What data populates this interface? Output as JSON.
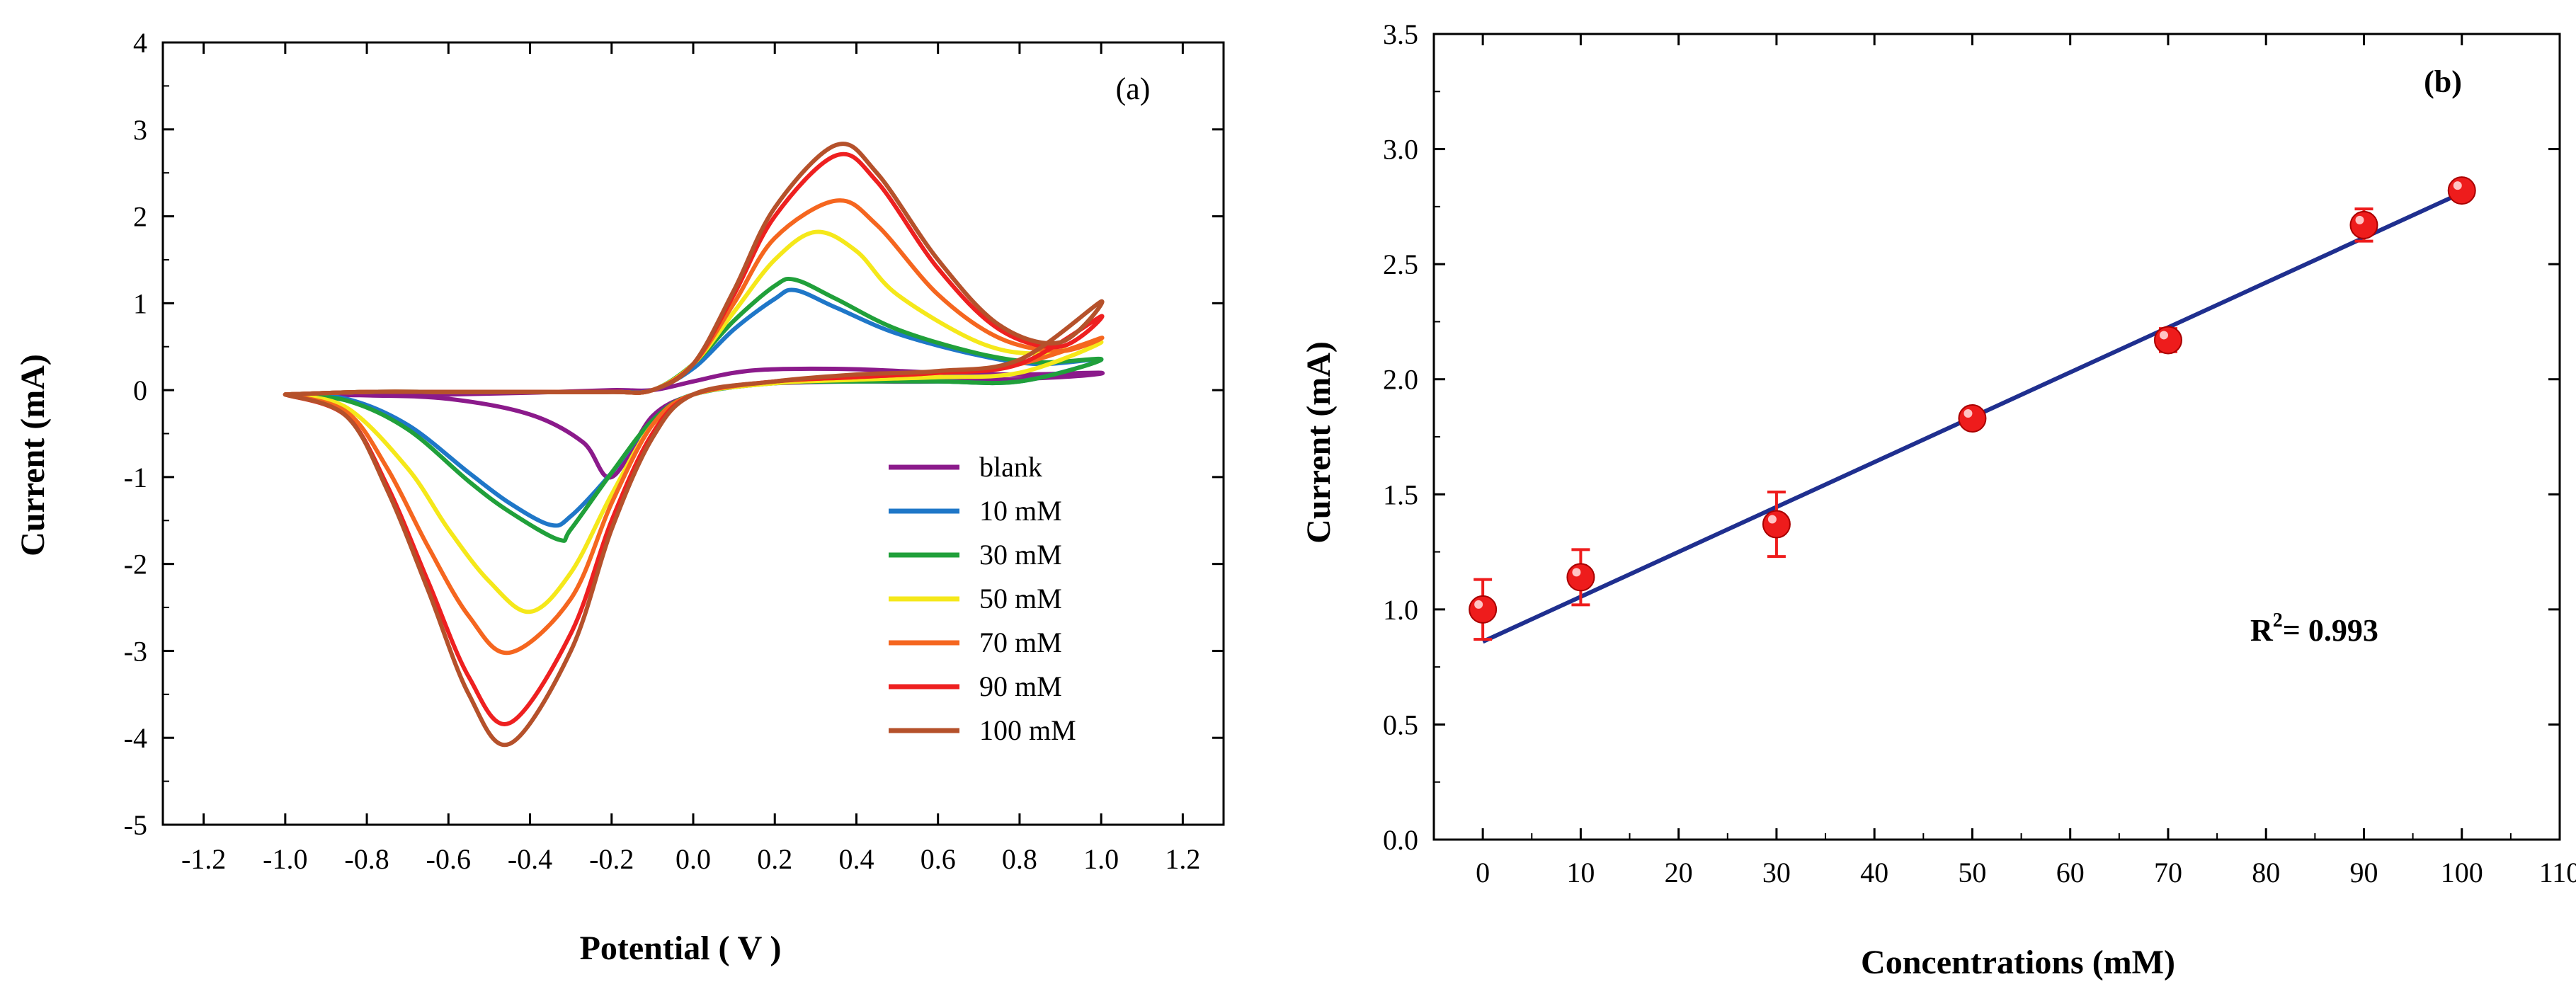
{
  "figure": "cyclic-voltammetry",
  "chart_data": [
    {
      "type": "line",
      "panel_label": "(a)",
      "title": "",
      "xlabel": "Potential ( V )",
      "ylabel": "Current (mA)",
      "xlim": [
        -1.3,
        1.3
      ],
      "ylim": [
        -5,
        4
      ],
      "x_ticks": [
        "-1.2",
        "-1.0",
        "-0.8",
        "-0.6",
        "-0.4",
        "-0.2",
        "0.0",
        "0.2",
        "0.4",
        "0.6",
        "0.8",
        "1.0",
        "1.2"
      ],
      "y_ticks": [
        "-5",
        "-4",
        "-3",
        "-2",
        "-1",
        "0",
        "1",
        "2",
        "3",
        "4"
      ],
      "legend_position": "bottom-right",
      "series": [
        {
          "name": "blank",
          "color": "#8b1a8b",
          "forward": [
            [
              -1.0,
              -0.05
            ],
            [
              -0.8,
              -0.05
            ],
            [
              -0.6,
              -0.05
            ],
            [
              -0.4,
              -0.03
            ],
            [
              -0.2,
              0.0
            ],
            [
              -0.1,
              0.0
            ],
            [
              0.0,
              0.1
            ],
            [
              0.1,
              0.2
            ],
            [
              0.2,
              0.24
            ],
            [
              0.4,
              0.24
            ],
            [
              0.6,
              0.2
            ],
            [
              0.8,
              0.18
            ],
            [
              1.0,
              0.2
            ]
          ],
          "reverse": [
            [
              1.0,
              0.12
            ],
            [
              0.9,
              0.15
            ],
            [
              0.6,
              0.1
            ],
            [
              0.4,
              0.1
            ],
            [
              0.2,
              0.08
            ],
            [
              0.1,
              0.05
            ],
            [
              0.0,
              -0.05
            ],
            [
              -0.1,
              -0.3
            ],
            [
              -0.2,
              -1.0
            ],
            [
              -0.27,
              -0.6
            ],
            [
              -0.4,
              -0.28
            ],
            [
              -0.6,
              -0.1
            ],
            [
              -0.8,
              -0.06
            ],
            [
              -1.0,
              -0.05
            ]
          ]
        },
        {
          "name": "10 mM",
          "color": "#1f77c8",
          "forward": [
            [
              -1.0,
              -0.05
            ],
            [
              -0.8,
              -0.02
            ],
            [
              -0.6,
              -0.02
            ],
            [
              -0.4,
              -0.02
            ],
            [
              -0.2,
              -0.02
            ],
            [
              -0.1,
              0.0
            ],
            [
              0.0,
              0.25
            ],
            [
              0.1,
              0.7
            ],
            [
              0.2,
              1.05
            ],
            [
              0.25,
              1.15
            ],
            [
              0.35,
              0.95
            ],
            [
              0.5,
              0.65
            ],
            [
              0.7,
              0.4
            ],
            [
              0.85,
              0.3
            ],
            [
              1.0,
              0.35
            ]
          ],
          "reverse": [
            [
              1.0,
              0.1
            ],
            [
              0.8,
              0.1
            ],
            [
              0.6,
              0.1
            ],
            [
              0.4,
              0.1
            ],
            [
              0.2,
              0.08
            ],
            [
              0.0,
              -0.05
            ],
            [
              -0.1,
              -0.35
            ],
            [
              -0.2,
              -0.95
            ],
            [
              -0.3,
              -1.45
            ],
            [
              -0.35,
              -1.55
            ],
            [
              -0.45,
              -1.3
            ],
            [
              -0.55,
              -0.95
            ],
            [
              -0.7,
              -0.4
            ],
            [
              -0.85,
              -0.1
            ],
            [
              -1.0,
              -0.05
            ]
          ]
        },
        {
          "name": "30 mM",
          "color": "#20a03a",
          "forward": [
            [
              -1.0,
              -0.05
            ],
            [
              -0.8,
              -0.02
            ],
            [
              -0.6,
              -0.02
            ],
            [
              -0.4,
              -0.02
            ],
            [
              -0.2,
              -0.02
            ],
            [
              -0.1,
              0.0
            ],
            [
              0.0,
              0.3
            ],
            [
              0.1,
              0.8
            ],
            [
              0.2,
              1.2
            ],
            [
              0.25,
              1.27
            ],
            [
              0.35,
              1.05
            ],
            [
              0.5,
              0.7
            ],
            [
              0.7,
              0.42
            ],
            [
              0.85,
              0.32
            ],
            [
              1.0,
              0.35
            ]
          ],
          "reverse": [
            [
              1.0,
              0.1
            ],
            [
              0.8,
              0.1
            ],
            [
              0.6,
              0.1
            ],
            [
              0.4,
              0.1
            ],
            [
              0.2,
              0.08
            ],
            [
              0.0,
              -0.05
            ],
            [
              -0.1,
              -0.35
            ],
            [
              -0.2,
              -0.95
            ],
            [
              -0.3,
              -1.6
            ],
            [
              -0.33,
              -1.72
            ],
            [
              -0.45,
              -1.4
            ],
            [
              -0.55,
              -1.05
            ],
            [
              -0.7,
              -0.45
            ],
            [
              -0.85,
              -0.12
            ],
            [
              -1.0,
              -0.05
            ]
          ]
        },
        {
          "name": "50 mM",
          "color": "#f5e81a",
          "forward": [
            [
              -1.0,
              -0.05
            ],
            [
              -0.8,
              -0.02
            ],
            [
              -0.6,
              -0.02
            ],
            [
              -0.4,
              -0.02
            ],
            [
              -0.2,
              -0.02
            ],
            [
              -0.1,
              0.0
            ],
            [
              0.0,
              0.3
            ],
            [
              0.1,
              0.9
            ],
            [
              0.2,
              1.5
            ],
            [
              0.3,
              1.82
            ],
            [
              0.4,
              1.6
            ],
            [
              0.5,
              1.1
            ],
            [
              0.7,
              0.55
            ],
            [
              0.85,
              0.42
            ],
            [
              1.0,
              0.55
            ]
          ],
          "reverse": [
            [
              1.0,
              0.3
            ],
            [
              0.8,
              0.2
            ],
            [
              0.6,
              0.15
            ],
            [
              0.4,
              0.12
            ],
            [
              0.2,
              0.08
            ],
            [
              0.0,
              -0.05
            ],
            [
              -0.1,
              -0.4
            ],
            [
              -0.2,
              -1.2
            ],
            [
              -0.3,
              -2.1
            ],
            [
              -0.4,
              -2.55
            ],
            [
              -0.5,
              -2.2
            ],
            [
              -0.6,
              -1.6
            ],
            [
              -0.7,
              -0.9
            ],
            [
              -0.85,
              -0.2
            ],
            [
              -1.0,
              -0.05
            ]
          ]
        },
        {
          "name": "70 mM",
          "color": "#f5661f",
          "forward": [
            [
              -1.0,
              -0.05
            ],
            [
              -0.8,
              -0.02
            ],
            [
              -0.6,
              -0.02
            ],
            [
              -0.4,
              -0.02
            ],
            [
              -0.2,
              -0.02
            ],
            [
              -0.1,
              0.0
            ],
            [
              0.0,
              0.3
            ],
            [
              0.1,
              1.0
            ],
            [
              0.2,
              1.75
            ],
            [
              0.35,
              2.18
            ],
            [
              0.45,
              1.9
            ],
            [
              0.6,
              1.1
            ],
            [
              0.75,
              0.6
            ],
            [
              0.9,
              0.45
            ],
            [
              1.0,
              0.6
            ]
          ],
          "reverse": [
            [
              1.0,
              0.45
            ],
            [
              0.8,
              0.3
            ],
            [
              0.6,
              0.2
            ],
            [
              0.4,
              0.15
            ],
            [
              0.2,
              0.1
            ],
            [
              0.0,
              -0.05
            ],
            [
              -0.1,
              -0.4
            ],
            [
              -0.2,
              -1.3
            ],
            [
              -0.3,
              -2.4
            ],
            [
              -0.45,
              -3.02
            ],
            [
              -0.55,
              -2.6
            ],
            [
              -0.65,
              -1.8
            ],
            [
              -0.75,
              -0.9
            ],
            [
              -0.85,
              -0.25
            ],
            [
              -1.0,
              -0.05
            ]
          ]
        },
        {
          "name": "90 mM",
          "color": "#ee2020",
          "forward": [
            [
              -1.0,
              -0.05
            ],
            [
              -0.8,
              -0.02
            ],
            [
              -0.6,
              -0.02
            ],
            [
              -0.4,
              -0.02
            ],
            [
              -0.2,
              -0.02
            ],
            [
              -0.1,
              0.0
            ],
            [
              0.0,
              0.3
            ],
            [
              0.1,
              1.1
            ],
            [
              0.2,
              2.0
            ],
            [
              0.35,
              2.7
            ],
            [
              0.45,
              2.4
            ],
            [
              0.6,
              1.4
            ],
            [
              0.75,
              0.7
            ],
            [
              0.9,
              0.5
            ],
            [
              1.0,
              0.85
            ]
          ],
          "reverse": [
            [
              1.0,
              0.5
            ],
            [
              0.8,
              0.3
            ],
            [
              0.6,
              0.2
            ],
            [
              0.4,
              0.15
            ],
            [
              0.2,
              0.1
            ],
            [
              0.0,
              -0.05
            ],
            [
              -0.1,
              -0.5
            ],
            [
              -0.2,
              -1.5
            ],
            [
              -0.3,
              -2.8
            ],
            [
              -0.45,
              -3.83
            ],
            [
              -0.55,
              -3.3
            ],
            [
              -0.65,
              -2.2
            ],
            [
              -0.75,
              -1.1
            ],
            [
              -0.85,
              -0.3
            ],
            [
              -1.0,
              -0.05
            ]
          ]
        },
        {
          "name": "100 mM",
          "color": "#b5512b",
          "forward": [
            [
              -1.0,
              -0.05
            ],
            [
              -0.8,
              -0.02
            ],
            [
              -0.6,
              -0.02
            ],
            [
              -0.4,
              -0.02
            ],
            [
              -0.2,
              -0.02
            ],
            [
              -0.1,
              0.0
            ],
            [
              0.0,
              0.3
            ],
            [
              0.1,
              1.15
            ],
            [
              0.2,
              2.1
            ],
            [
              0.35,
              2.82
            ],
            [
              0.45,
              2.5
            ],
            [
              0.6,
              1.5
            ],
            [
              0.75,
              0.75
            ],
            [
              0.9,
              0.55
            ],
            [
              1.0,
              1.02
            ]
          ],
          "reverse": [
            [
              1.0,
              0.55
            ],
            [
              0.8,
              0.35
            ],
            [
              0.6,
              0.22
            ],
            [
              0.4,
              0.18
            ],
            [
              0.2,
              0.1
            ],
            [
              0.0,
              -0.05
            ],
            [
              -0.1,
              -0.55
            ],
            [
              -0.2,
              -1.6
            ],
            [
              -0.3,
              -3.0
            ],
            [
              -0.45,
              -4.07
            ],
            [
              -0.55,
              -3.5
            ],
            [
              -0.65,
              -2.3
            ],
            [
              -0.75,
              -1.15
            ],
            [
              -0.85,
              -0.3
            ],
            [
              -1.0,
              -0.05
            ]
          ]
        }
      ]
    },
    {
      "type": "scatter",
      "panel_label": "(b)",
      "title": "",
      "xlabel": "Concentrations (mM)",
      "ylabel": "Current (mA)",
      "xlim": [
        -5,
        110
      ],
      "ylim": [
        0.0,
        3.5
      ],
      "x_ticks": [
        "0",
        "10",
        "20",
        "30",
        "40",
        "50",
        "60",
        "70",
        "80",
        "90",
        "100",
        "110"
      ],
      "y_ticks": [
        "0.0",
        "0.5",
        "1.0",
        "1.5",
        "2.0",
        "2.5",
        "3.0",
        "3.5"
      ],
      "points": {
        "name": "Current",
        "color": "#ee1c1c",
        "x": [
          0,
          10,
          30,
          50,
          70,
          90,
          100
        ],
        "y": [
          1.0,
          1.14,
          1.37,
          1.83,
          2.17,
          2.67,
          2.82
        ],
        "error": [
          0.13,
          0.12,
          0.14,
          0.03,
          0.05,
          0.07,
          0.03
        ]
      },
      "fit": {
        "color": "#1f2f8f",
        "x": [
          0,
          100
        ],
        "y": [
          0.86,
          2.81
        ]
      },
      "annotation": {
        "prefix": "R",
        "superscript": "2",
        "text": "= 0.993"
      }
    }
  ]
}
